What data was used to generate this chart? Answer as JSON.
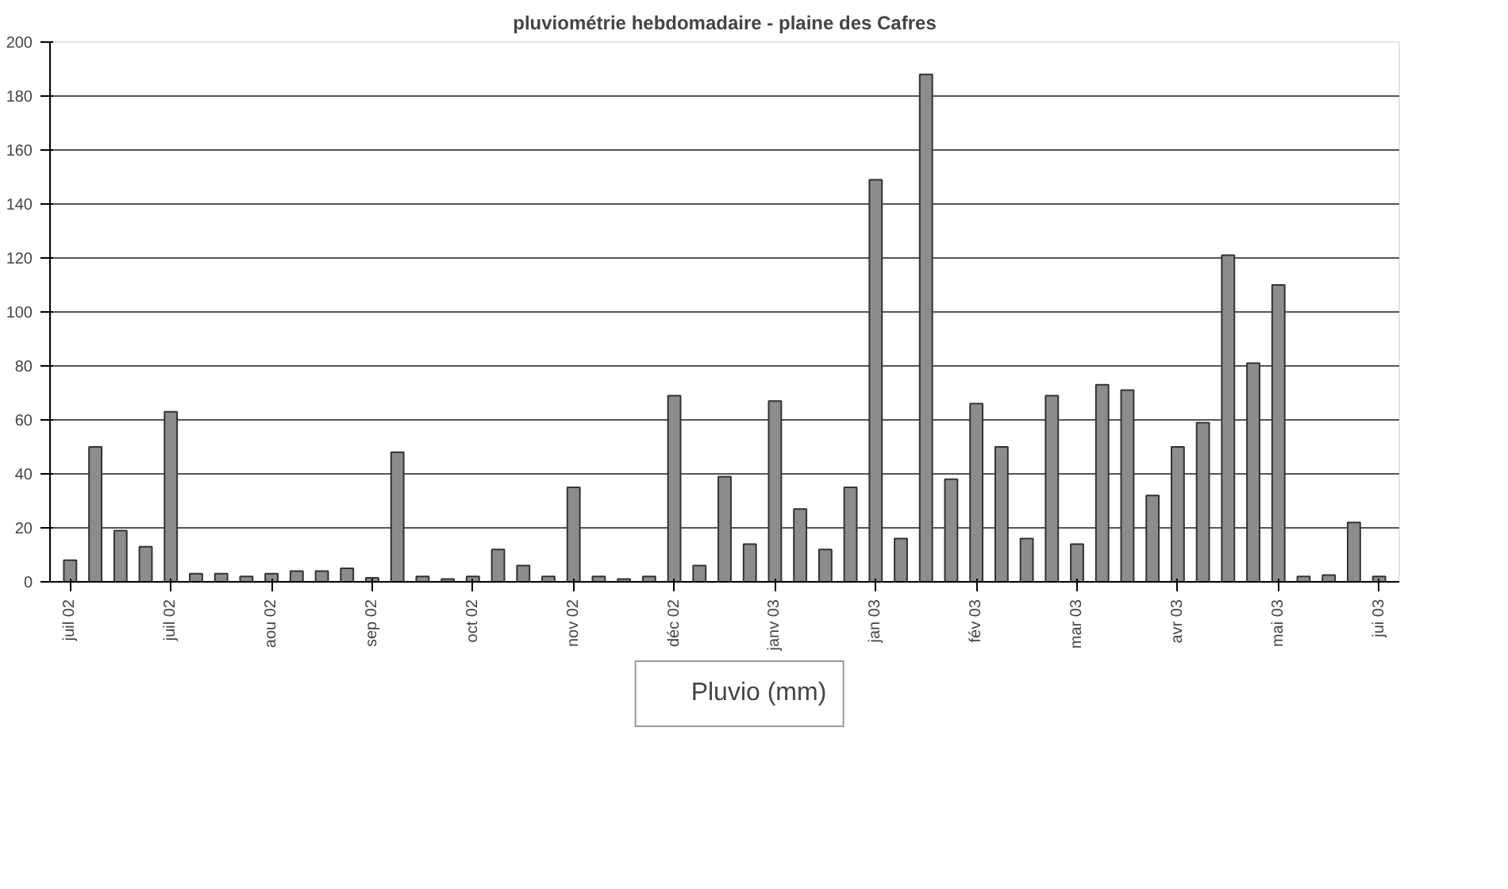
{
  "chart_data": {
    "type": "bar",
    "title": "pluviométrie hebdomadaire - plaine des Cafres",
    "categories": [
      "juil 02",
      null,
      null,
      null,
      "juil 02",
      null,
      null,
      null,
      "aou 02",
      null,
      null,
      null,
      "sep 02",
      null,
      null,
      null,
      "oct 02",
      null,
      null,
      null,
      "nov 02",
      null,
      null,
      null,
      "déc 02",
      null,
      null,
      null,
      "janv 03",
      null,
      null,
      null,
      "jan 03",
      null,
      null,
      null,
      "fév 03",
      null,
      null,
      null,
      "mar 03",
      null,
      null,
      null,
      "avr 03",
      null,
      null,
      null,
      "mai 03",
      null,
      null,
      null,
      "jui 03"
    ],
    "series": [
      {
        "name": "Pluvio (mm)",
        "color": "#8c8c8c",
        "values": [
          8,
          50,
          19,
          13,
          63,
          3,
          3,
          2,
          3,
          4,
          4,
          5,
          1.5,
          48,
          2,
          1,
          2,
          12,
          6,
          2,
          35,
          2,
          1,
          2,
          69,
          6,
          39,
          14,
          67,
          27,
          12,
          35,
          149,
          16,
          188,
          38,
          66,
          50,
          16,
          69,
          14,
          73,
          71,
          32,
          50,
          59,
          121,
          81,
          110,
          2,
          2.5,
          22,
          2
        ]
      }
    ],
    "ylim": [
      0,
      200
    ],
    "yticks": [
      0,
      20,
      40,
      60,
      80,
      100,
      120,
      140,
      160,
      180,
      200
    ],
    "grid": "y",
    "legend": "bottom"
  }
}
